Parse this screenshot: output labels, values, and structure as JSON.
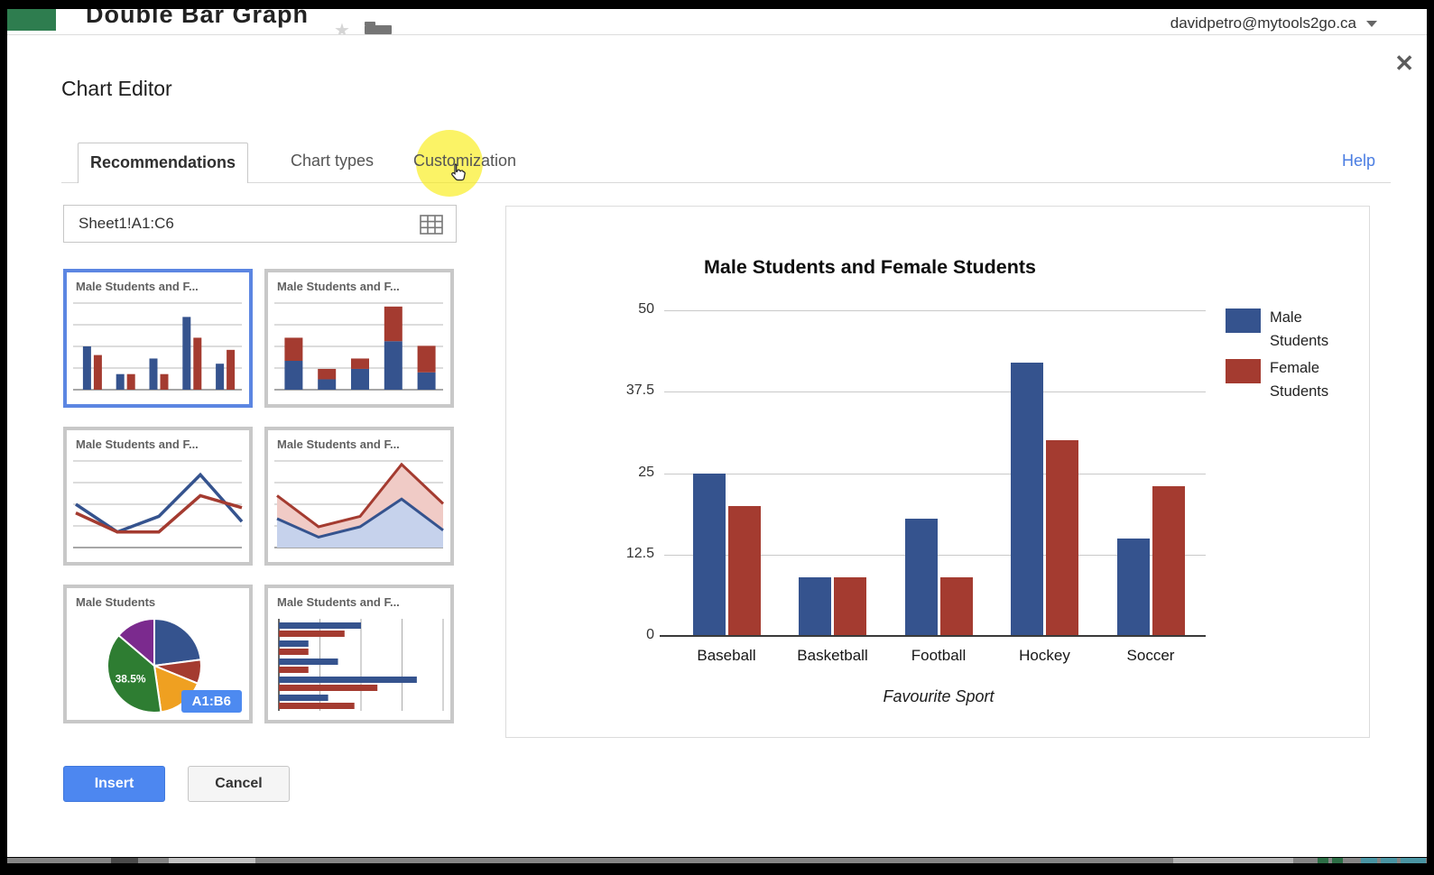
{
  "window": {
    "doc_title": "Double Bar Graph",
    "account_email": "davidpetro@mytools2go.ca"
  },
  "dialog": {
    "title": "Chart Editor",
    "tabs": {
      "recommendations": "Recommendations",
      "chart_types": "Chart types",
      "customization": "Customization"
    },
    "help": "Help",
    "range_value": "Sheet1!A1:C6",
    "insert": "Insert",
    "cancel": "Cancel"
  },
  "thumbnails": [
    {
      "type": "grouped-bar",
      "title": "Male Students and F...",
      "selected": true
    },
    {
      "type": "stacked-bar",
      "title": "Male Students and F...",
      "selected": false
    },
    {
      "type": "line",
      "title": "Male Students and F...",
      "selected": false
    },
    {
      "type": "stacked-area",
      "title": "Male Students and F...",
      "selected": false
    },
    {
      "type": "pie",
      "title": "Male Students",
      "slice_label": "38.5%",
      "badge": "A1:B6",
      "selected": false
    },
    {
      "type": "hbar",
      "title": "Male Students and F...",
      "selected": false
    }
  ],
  "chart_data": {
    "type": "bar",
    "title": "Male Students and Female Students",
    "categories": [
      "Baseball",
      "Basketball",
      "Football",
      "Hockey",
      "Soccer"
    ],
    "series": [
      {
        "name": "Male Students",
        "color": "#35538E",
        "values": [
          25,
          9,
          18,
          42,
          15
        ]
      },
      {
        "name": "Female Students",
        "color": "#A43B30",
        "values": [
          20,
          9,
          9,
          30,
          23
        ]
      }
    ],
    "xlabel": "Favourite Sport",
    "ylabel": "",
    "yticks": [
      0,
      12.5,
      25,
      37.5,
      50
    ],
    "ylim": [
      0,
      50
    ],
    "grid": true,
    "legend_position": "right",
    "pie_colors": [
      "#35538E",
      "#A43B30",
      "#EFA021",
      "#2E7D32",
      "#7B2A8E"
    ]
  },
  "colors": {
    "accent_blue": "#4d87f0",
    "selected_border": "#5c86e2",
    "highlight_yellow": "#f8ec08",
    "logo_green": "#2e7d4f",
    "help_link": "#4a7de2"
  }
}
